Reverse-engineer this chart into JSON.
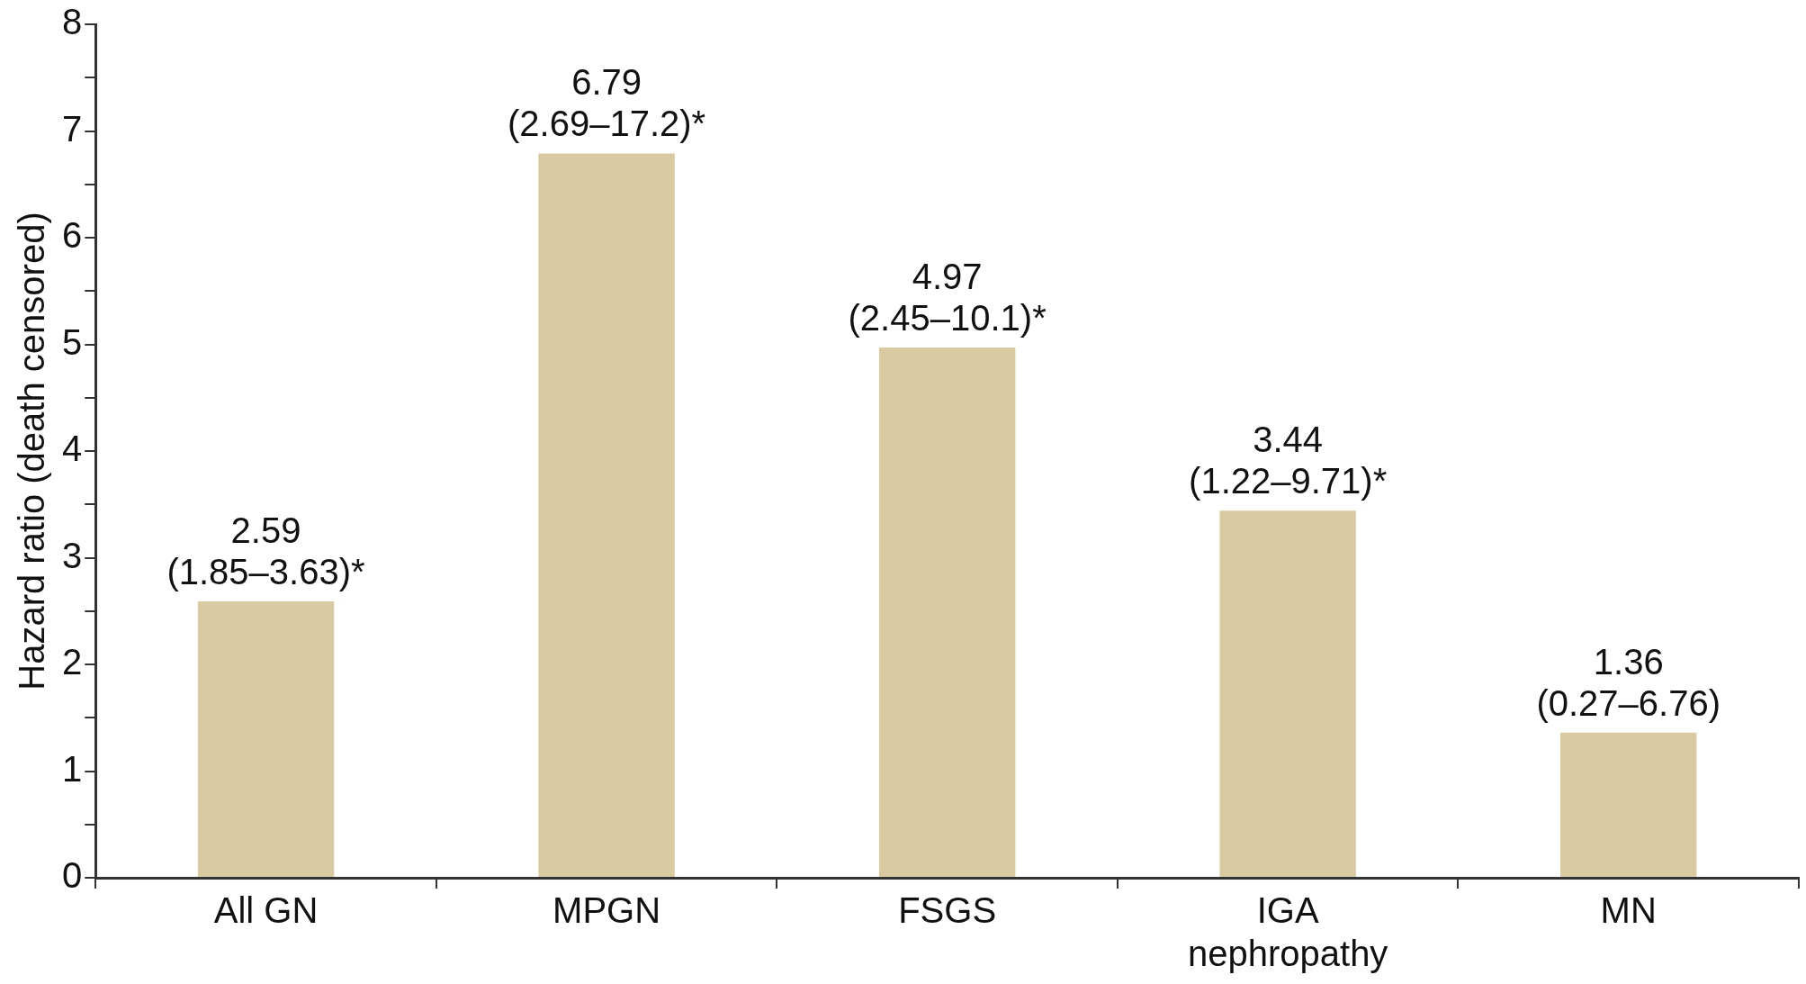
{
  "chart_data": {
    "type": "bar",
    "ylabel": "Hazard ratio (death censored)",
    "categories": [
      "All GN",
      "MPGN",
      "FSGS",
      "IGA nephropathy",
      "MN"
    ],
    "values": [
      2.59,
      6.79,
      4.97,
      3.44,
      1.36
    ],
    "color": "#dacaa2",
    "value_labels": [
      "2.59\n(1.85–3.63)*",
      "6.79\n(2.69–17.2)*",
      "4.97\n(2.45–10.1)*",
      "3.44\n(1.22–9.71)*",
      "1.36\n(0.27–6.76)"
    ],
    "ylim": [
      0,
      8
    ],
    "yticks": [
      0,
      {
        "value": 0.5,
        "label": null
      },
      1,
      {
        "value": 1.5,
        "label": null
      },
      2,
      {
        "value": 2.5,
        "label": null
      },
      3,
      {
        "value": 3.5,
        "label": null
      },
      4,
      {
        "value": 4.5,
        "label": null
      },
      5,
      {
        "value": 5.5,
        "label": null
      },
      6,
      {
        "value": 6.5,
        "label": null
      },
      7,
      {
        "value": 7.5,
        "label": null
      },
      8
    ],
    "grid": false,
    "legend": false
  }
}
